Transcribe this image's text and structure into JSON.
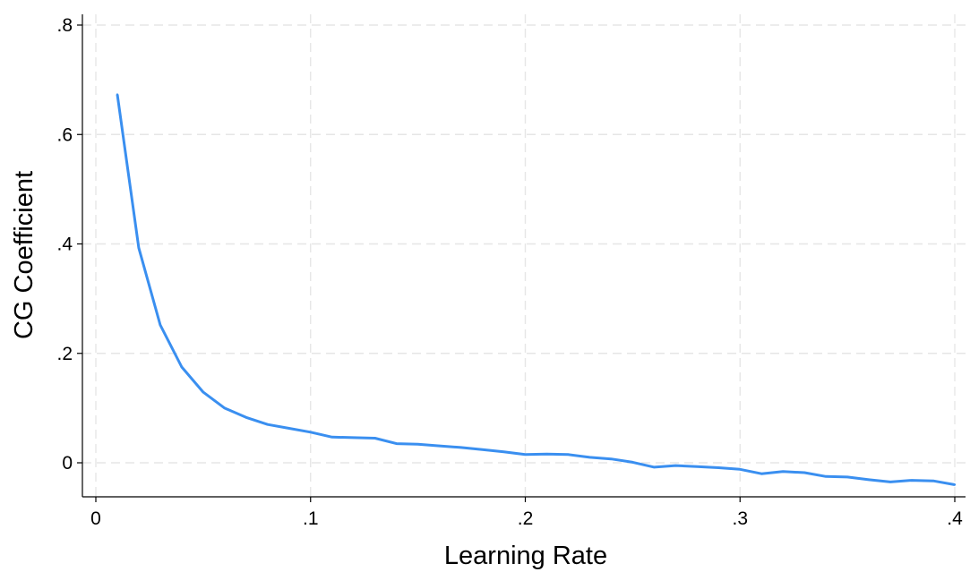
{
  "chart_data": {
    "type": "line",
    "xlabel": "Learning Rate",
    "ylabel": "CG Coefficient",
    "xlim": [
      0,
      0.4
    ],
    "ylim": [
      -0.06,
      0.82
    ],
    "grid": true,
    "x_ticks": [
      {
        "value": 0,
        "label": "0"
      },
      {
        "value": 0.1,
        "label": ".1"
      },
      {
        "value": 0.2,
        "label": ".2"
      },
      {
        "value": 0.3,
        "label": ".3"
      },
      {
        "value": 0.4,
        "label": ".4"
      }
    ],
    "y_ticks": [
      {
        "value": 0,
        "label": "0"
      },
      {
        "value": 0.2,
        "label": ".2"
      },
      {
        "value": 0.4,
        "label": ".4"
      },
      {
        "value": 0.6,
        "label": ".6"
      },
      {
        "value": 0.8,
        "label": ".8"
      }
    ],
    "series": [
      {
        "color": "#3a8ff0",
        "x": [
          0.01,
          0.02,
          0.03,
          0.04,
          0.05,
          0.06,
          0.07,
          0.08,
          0.09,
          0.1,
          0.11,
          0.12,
          0.13,
          0.14,
          0.15,
          0.16,
          0.17,
          0.18,
          0.19,
          0.2,
          0.21,
          0.22,
          0.23,
          0.24,
          0.25,
          0.26,
          0.27,
          0.28,
          0.29,
          0.3,
          0.31,
          0.32,
          0.33,
          0.34,
          0.35,
          0.36,
          0.37,
          0.38,
          0.39,
          0.4
        ],
        "y": [
          0.673,
          0.393,
          0.252,
          0.175,
          0.129,
          0.1,
          0.083,
          0.07,
          0.063,
          0.056,
          0.047,
          0.046,
          0.045,
          0.035,
          0.034,
          0.031,
          0.028,
          0.024,
          0.02,
          0.015,
          0.016,
          0.015,
          0.01,
          0.007,
          0.001,
          -0.008,
          -0.005,
          -0.007,
          -0.009,
          -0.012,
          -0.02,
          -0.016,
          -0.018,
          -0.025,
          -0.026,
          -0.031,
          -0.035,
          -0.032,
          -0.033,
          -0.04
        ]
      }
    ]
  }
}
